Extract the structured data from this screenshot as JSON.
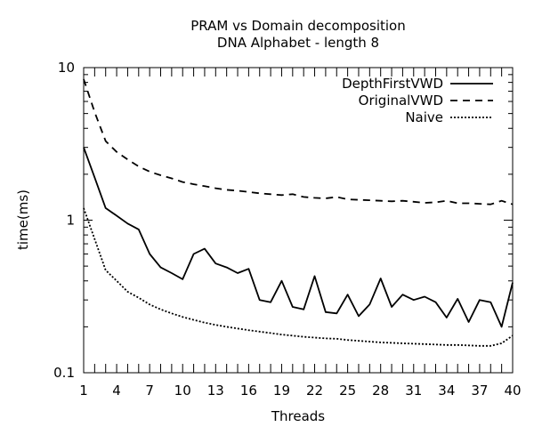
{
  "chart_data": {
    "type": "line",
    "title": "PRAM vs Domain decomposition",
    "subtitle": "DNA Alphabet - length 8",
    "xlabel": "Threads",
    "ylabel": "time(ms)",
    "xlim": [
      1,
      40
    ],
    "ylim": [
      0.1,
      10
    ],
    "yscale": "log",
    "grid": false,
    "legend_position": "top-right",
    "x_ticks": [
      1,
      4,
      7,
      10,
      13,
      16,
      19,
      22,
      25,
      28,
      31,
      34,
      37,
      40
    ],
    "y_ticks": [
      {
        "value": 0.1,
        "label": "0.1"
      },
      {
        "value": 1,
        "label": "1"
      },
      {
        "value": 10,
        "label": "10"
      }
    ],
    "x": [
      1,
      2,
      3,
      4,
      5,
      6,
      7,
      8,
      9,
      10,
      11,
      12,
      13,
      14,
      15,
      16,
      17,
      18,
      19,
      20,
      21,
      22,
      23,
      24,
      25,
      26,
      27,
      28,
      29,
      30,
      31,
      32,
      33,
      34,
      35,
      36,
      37,
      38,
      39,
      40
    ],
    "series": [
      {
        "name": "DepthFirstVWD",
        "dash": "solid",
        "values": [
          3.0,
          1.9,
          1.2,
          1.07,
          0.95,
          0.87,
          0.6,
          0.49,
          0.45,
          0.41,
          0.6,
          0.65,
          0.52,
          0.49,
          0.45,
          0.48,
          0.3,
          0.29,
          0.4,
          0.27,
          0.26,
          0.43,
          0.25,
          0.245,
          0.325,
          0.235,
          0.28,
          0.415,
          0.27,
          0.325,
          0.3,
          0.315,
          0.29,
          0.23,
          0.305,
          0.215,
          0.3,
          0.29,
          0.2,
          0.39
        ]
      },
      {
        "name": "OriginalVWD",
        "dash": "dashed",
        "values": [
          8.4,
          5.1,
          3.3,
          2.8,
          2.5,
          2.25,
          2.08,
          1.97,
          1.88,
          1.78,
          1.72,
          1.67,
          1.62,
          1.58,
          1.56,
          1.53,
          1.5,
          1.48,
          1.46,
          1.48,
          1.42,
          1.4,
          1.39,
          1.42,
          1.37,
          1.36,
          1.35,
          1.34,
          1.33,
          1.34,
          1.32,
          1.3,
          1.31,
          1.34,
          1.29,
          1.29,
          1.28,
          1.27,
          1.34,
          1.27
        ]
      },
      {
        "name": "Naive",
        "dash": "dotted",
        "values": [
          1.2,
          0.75,
          0.47,
          0.4,
          0.34,
          0.31,
          0.28,
          0.26,
          0.245,
          0.232,
          0.222,
          0.213,
          0.206,
          0.2,
          0.195,
          0.19,
          0.186,
          0.182,
          0.178,
          0.175,
          0.172,
          0.17,
          0.168,
          0.167,
          0.164,
          0.162,
          0.16,
          0.158,
          0.157,
          0.156,
          0.155,
          0.154,
          0.153,
          0.152,
          0.152,
          0.151,
          0.15,
          0.15,
          0.156,
          0.175
        ]
      }
    ]
  }
}
